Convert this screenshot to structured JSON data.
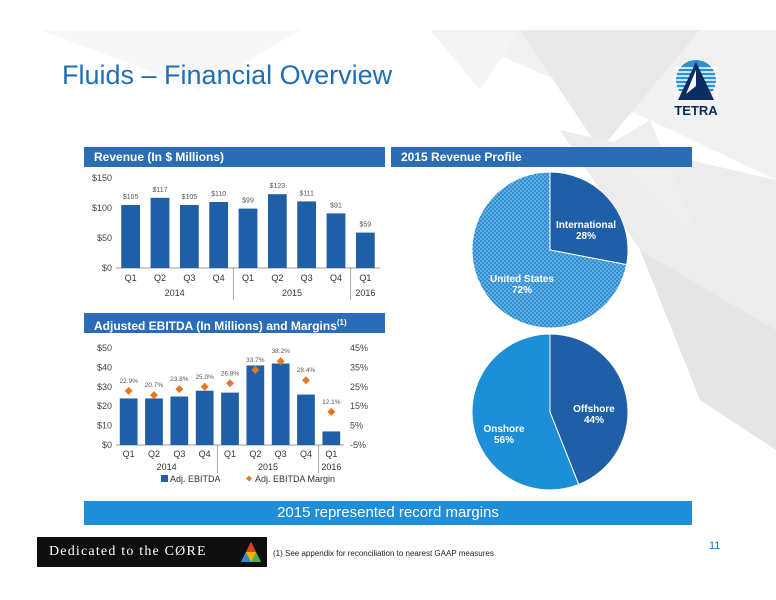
{
  "title": "Fluids – Financial Overview",
  "logo_text": "TETRA",
  "revenue": {
    "header": "Revenue (In $ Millions)",
    "chart_data": {
      "type": "bar",
      "categories": [
        "Q1",
        "Q2",
        "Q3",
        "Q4",
        "Q1",
        "Q2",
        "Q3",
        "Q4",
        "Q1"
      ],
      "groups": [
        {
          "label": "2014",
          "count": 4
        },
        {
          "label": "2015",
          "count": 4
        },
        {
          "label": "2016",
          "count": 1
        }
      ],
      "values": [
        105,
        117,
        105,
        110,
        99,
        123,
        111,
        91,
        59
      ],
      "data_labels": [
        "$105",
        "$117",
        "$105",
        "$110",
        "$99",
        "$123",
        "$111",
        "$91",
        "$59"
      ],
      "ylim": [
        0,
        150
      ],
      "yticks": [
        0,
        50,
        100,
        150
      ],
      "ytick_labels": [
        "$0",
        "$50",
        "$100",
        "$150"
      ],
      "color": "#1f5fa8",
      "grid": false
    }
  },
  "ebitda": {
    "header": "Adjusted EBITDA (In Millions) and Margins",
    "header_sup": "(1)",
    "chart_data": {
      "type": "bar",
      "categories": [
        "Q1",
        "Q2",
        "Q3",
        "Q4",
        "Q1",
        "Q2",
        "Q3",
        "Q4",
        "Q1"
      ],
      "groups": [
        {
          "label": "2014",
          "count": 4
        },
        {
          "label": "2015",
          "count": 4
        },
        {
          "label": "2016",
          "count": 1
        }
      ],
      "series": [
        {
          "name": "Adj. EBITDA",
          "type": "bar",
          "values": [
            24,
            24,
            25,
            28,
            27,
            41,
            42,
            26,
            7
          ],
          "color": "#1f5fa8"
        },
        {
          "name": "Adj. EBITDA Margin",
          "type": "scatter",
          "values": [
            22.9,
            20.7,
            23.8,
            25.0,
            26.8,
            33.7,
            38.2,
            28.4,
            12.1
          ],
          "labels": [
            "22.9%",
            "20.7%",
            "23.8%",
            "25.0%",
            "26.8%",
            "33.7%",
            "38.2%",
            "28.4%",
            "12.1%"
          ],
          "color": "#e87722"
        }
      ],
      "ylim": [
        0,
        50
      ],
      "yticks_left": [
        "$0",
        "$10",
        "$20",
        "$30",
        "$40",
        "$50"
      ],
      "y2lim": [
        -5,
        45
      ],
      "yticks_right": [
        "-5%",
        "5%",
        "15%",
        "25%",
        "35%",
        "45%"
      ],
      "legend_position": "bottom",
      "grid": false
    }
  },
  "profile": {
    "header": "2015 Revenue Profile",
    "chart_data": [
      {
        "type": "pie",
        "slices": [
          {
            "label": "International",
            "value": 28,
            "pct": "28%",
            "color": "#1f5fa8",
            "pattern": false
          },
          {
            "label": "United States",
            "value": 72,
            "pct": "72%",
            "color": "#2e8fd3",
            "pattern": true
          }
        ]
      },
      {
        "type": "pie",
        "slices": [
          {
            "label": "Offshore",
            "value": 44,
            "pct": "44%",
            "color": "#1f5fa8",
            "pattern": false
          },
          {
            "label": "Onshore",
            "value": 56,
            "pct": "56%",
            "color": "#1d8fd6",
            "pattern": false
          }
        ]
      }
    ]
  },
  "banner": "2015 represented record margins",
  "footer_logo_text": "Dedicated to the CØRE",
  "footnote": "(1)   See appendix for reconciliation to nearest GAAP measures",
  "page_number": "11"
}
